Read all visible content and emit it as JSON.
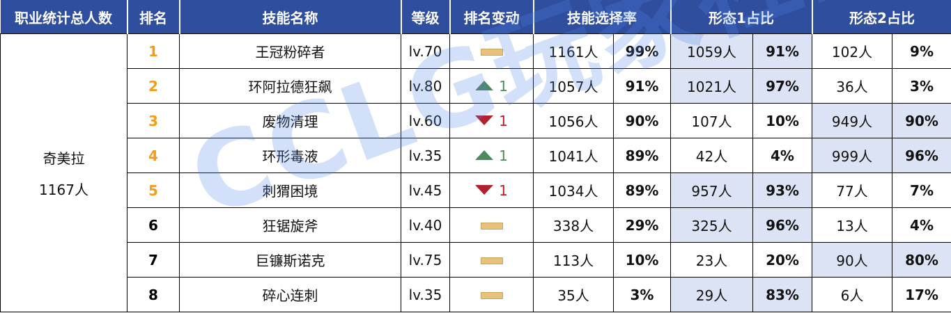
{
  "header": [
    "职业统计总人数",
    "排名",
    "技能名称",
    "等级",
    "排名变动",
    "技能选择率",
    "形态1占比",
    "形态2占比"
  ],
  "class": {
    "name": "奇美拉",
    "total": "1167人"
  },
  "watermark": "CCLG玩家社区",
  "colors": {
    "header_bg": "#2f4e9e",
    "highlight": "#dce3f4",
    "rank_top": "#f29c1f",
    "rank_other": "#000000",
    "up": "#4a8a5c",
    "down": "#b0202e",
    "none": "#e8c27a"
  },
  "rows": [
    {
      "rank": "1",
      "top": true,
      "skill": "王冠粉碎者",
      "level": "lv.70",
      "change": {
        "dir": "none"
      },
      "sel": "1161人",
      "sel_pct": "99%",
      "f1": "1059人",
      "f1_pct": "91%",
      "f2": "102人",
      "f2_pct": "9%",
      "hl": "f1"
    },
    {
      "rank": "2",
      "top": true,
      "skill": "环阿拉德狂飙",
      "level": "lv.80",
      "change": {
        "dir": "up",
        "amount": "1"
      },
      "sel": "1057人",
      "sel_pct": "91%",
      "f1": "1021人",
      "f1_pct": "97%",
      "f2": "36人",
      "f2_pct": "3%",
      "hl": "f1"
    },
    {
      "rank": "3",
      "top": true,
      "skill": "废物清理",
      "level": "lv.60",
      "change": {
        "dir": "down",
        "amount": "1"
      },
      "sel": "1056人",
      "sel_pct": "90%",
      "f1": "107人",
      "f1_pct": "10%",
      "f2": "949人",
      "f2_pct": "90%",
      "hl": "f2"
    },
    {
      "rank": "4",
      "top": true,
      "skill": "环形毒液",
      "level": "lv.35",
      "change": {
        "dir": "up",
        "amount": "1"
      },
      "sel": "1041人",
      "sel_pct": "89%",
      "f1": "42人",
      "f1_pct": "4%",
      "f2": "999人",
      "f2_pct": "96%",
      "hl": "f2"
    },
    {
      "rank": "5",
      "top": true,
      "skill": "刺猬困境",
      "level": "lv.45",
      "change": {
        "dir": "down",
        "amount": "1"
      },
      "sel": "1034人",
      "sel_pct": "89%",
      "f1": "957人",
      "f1_pct": "93%",
      "f2": "77人",
      "f2_pct": "7%",
      "hl": "f1"
    },
    {
      "rank": "6",
      "top": false,
      "skill": "狂锯旋斧",
      "level": "lv.40",
      "change": {
        "dir": "none"
      },
      "sel": "338人",
      "sel_pct": "29%",
      "f1": "325人",
      "f1_pct": "96%",
      "f2": "13人",
      "f2_pct": "4%",
      "hl": "f1"
    },
    {
      "rank": "7",
      "top": false,
      "skill": "巨镰斯诺克",
      "level": "lv.75",
      "change": {
        "dir": "none"
      },
      "sel": "113人",
      "sel_pct": "10%",
      "f1": "23人",
      "f1_pct": "20%",
      "f2": "90人",
      "f2_pct": "80%",
      "hl": "f2"
    },
    {
      "rank": "8",
      "top": false,
      "skill": "碎心连刺",
      "level": "lv.35",
      "change": {
        "dir": "none"
      },
      "sel": "35人",
      "sel_pct": "3%",
      "f1": "29人",
      "f1_pct": "83%",
      "f2": "6人",
      "f2_pct": "17%",
      "hl": "f1"
    }
  ]
}
